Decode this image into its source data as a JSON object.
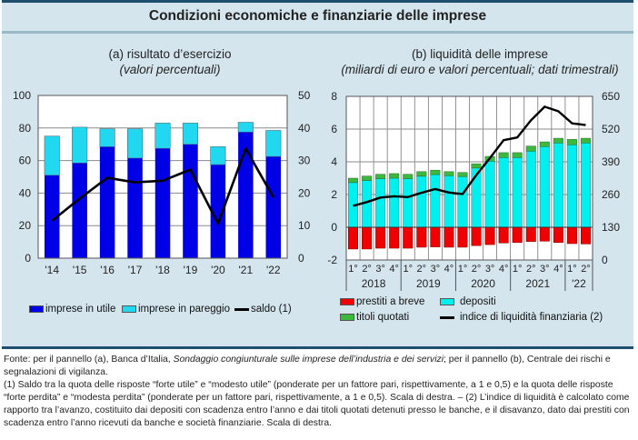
{
  "figure": {
    "title": "Condizioni economiche e finanziarie delle imprese"
  },
  "panel_a": {
    "title": "(a) risultato d’esercizio",
    "subtitle": "(valori percentuali)",
    "legend": [
      "imprese in utile",
      "imprese in pareggio",
      "saldo (1)"
    ]
  },
  "panel_b": {
    "title": "(b) liquidità delle imprese",
    "subtitle": "(miliardi di euro e valori percentuali; dati trimestrali)",
    "legend": [
      "prestiti a breve",
      "depositi",
      "titoli quotati",
      "indice di liquidità finanziaria (2)"
    ]
  },
  "notes": {
    "source_prefix": "Fonte: per il pannello (a), Banca d’Italia, ",
    "source_italic": "Sondaggio congiunturale sulle imprese dell’industria e dei servizi",
    "source_suffix": "; per il pannello (b), Centrale dei rischi e segnalazioni di vigilanza.",
    "note1": "(1) Saldo tra la quota delle risposte “forte utile” e “modesto utile” (ponderate per un fattore pari, rispettivamente, a 1 e 0,5) e la quota delle risposte “forte perdita” e “modesta perdita” (ponderate per un fattore pari, rispettivamente, a 1 e 0,5). Scala di destra. – (2) L’indice di liquidità è calcolato come rapporto tra l’avanzo, costituito dai depositi con scadenza entro l’anno e dai titoli quotati detenuti presso le banche, e il disavanzo, dato dai prestiti con scadenza entro l’anno ricevuti da banche e società finanziarie. Scala di destra."
  },
  "colors": {
    "utile": "#0000e6",
    "pareggio": "#22d8f0",
    "depositi": "#00f0f0",
    "prestiti": "#f00000",
    "titoli": "#3cb83c",
    "line": "#000000",
    "grid": "#8a8a8a"
  },
  "chart_data": [
    {
      "type": "bar",
      "title": "(a) risultato d’esercizio",
      "subtitle": "(valori percentuali)",
      "stacked": true,
      "categories": [
        "'14",
        "'15",
        "'16",
        "'17",
        "'18",
        "'19",
        "'20",
        "'21",
        "'22"
      ],
      "ylim": [
        0,
        100
      ],
      "yticks": [
        0,
        20,
        40,
        60,
        80,
        100
      ],
      "y2lim": [
        0,
        50
      ],
      "y2ticks": [
        0,
        10,
        20,
        30,
        40,
        50
      ],
      "grid": true,
      "legend_position": "bottom",
      "series": [
        {
          "name": "imprese in utile",
          "type": "bar",
          "values": [
            51,
            58.5,
            68.5,
            61.5,
            67.5,
            70,
            57.5,
            77.5,
            62.5
          ]
        },
        {
          "name": "imprese in pareggio",
          "type": "bar",
          "values": [
            24,
            22,
            11,
            18,
            15.5,
            13,
            11,
            6,
            16
          ]
        },
        {
          "name": "saldo (1)",
          "type": "line",
          "axis": "right",
          "values": [
            11.5,
            18.3,
            24.7,
            23.3,
            23.8,
            27.2,
            10.6,
            33.7,
            18.7
          ]
        }
      ]
    },
    {
      "type": "bar",
      "title": "(b) liquidità delle imprese",
      "subtitle": "(miliardi di euro e valori percentuali; dati trimestrali)",
      "stacked": true,
      "categories": [
        "1°",
        "2°",
        "3°",
        "4°",
        "1°",
        "2°",
        "3°",
        "4°",
        "1°",
        "2°",
        "3°",
        "4°",
        "1°",
        "2°",
        "3°",
        "4°",
        "1°",
        "2°"
      ],
      "year_groups": [
        {
          "label": "2018",
          "quarters": 4
        },
        {
          "label": "2019",
          "quarters": 4
        },
        {
          "label": "2020",
          "quarters": 4
        },
        {
          "label": "2021",
          "quarters": 4
        },
        {
          "label": "'22",
          "quarters": 2
        }
      ],
      "ylim": [
        -2,
        8
      ],
      "yticks": [
        -2,
        0,
        2,
        4,
        6,
        8
      ],
      "y2lim": [
        0,
        650
      ],
      "y2ticks": [
        0,
        130,
        260,
        390,
        520,
        650
      ],
      "grid": true,
      "legend_position": "bottom",
      "series": [
        {
          "name": "prestiti a breve",
          "type": "bar",
          "values": [
            -1.33,
            -1.33,
            -1.28,
            -1.28,
            -1.28,
            -1.22,
            -1.2,
            -1.22,
            -1.22,
            -1.12,
            -1.06,
            -0.96,
            -0.93,
            -0.87,
            -0.85,
            -0.93,
            -1.0,
            -1.02
          ]
        },
        {
          "name": "depositi",
          "type": "bar",
          "values": [
            2.73,
            2.86,
            2.97,
            3.0,
            2.97,
            3.12,
            3.22,
            3.15,
            3.1,
            3.62,
            4.04,
            4.26,
            4.26,
            4.65,
            4.93,
            5.15,
            5.04,
            5.15
          ]
        },
        {
          "name": "titoli quotati",
          "type": "bar",
          "values": [
            0.27,
            0.27,
            0.27,
            0.28,
            0.27,
            0.28,
            0.27,
            0.25,
            0.25,
            0.26,
            0.29,
            0.3,
            0.3,
            0.31,
            0.29,
            0.29,
            0.33,
            0.29
          ]
        },
        {
          "name": "indice di liquidità finanziaria (2)",
          "type": "line",
          "axis": "right",
          "values": [
            215,
            230,
            248,
            253,
            250,
            267,
            282,
            268,
            262,
            337,
            405,
            476,
            487,
            555,
            609,
            591,
            543,
            536
          ]
        }
      ]
    }
  ]
}
